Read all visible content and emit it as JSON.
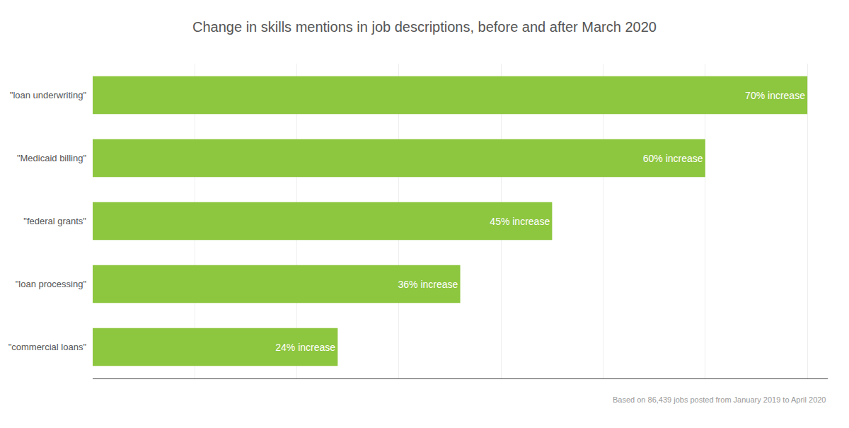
{
  "chart_data": {
    "type": "bar",
    "orientation": "horizontal",
    "title": "Change in skills mentions in job descriptions, before and after March 2020",
    "categories": [
      "\"commercial loans\"",
      "\"loan processing\"",
      "\"federal grants\"",
      "\"Medicaid billing\"",
      "\"loan underwriting\""
    ],
    "values": [
      24,
      36,
      45,
      60,
      70
    ],
    "value_labels": [
      "24% increase",
      "36% increase",
      "45% increase",
      "60% increase",
      "70% increase"
    ],
    "data_labels": true,
    "color": "#8dc63f",
    "xlim": [
      0,
      72
    ],
    "xticks": [
      0,
      10,
      20,
      30,
      40,
      50,
      60,
      70
    ],
    "grid": true,
    "tick_labels": "y",
    "annotations": [
      "Based on 86,439 jobs posted from January 2019 to April 2020"
    ]
  }
}
